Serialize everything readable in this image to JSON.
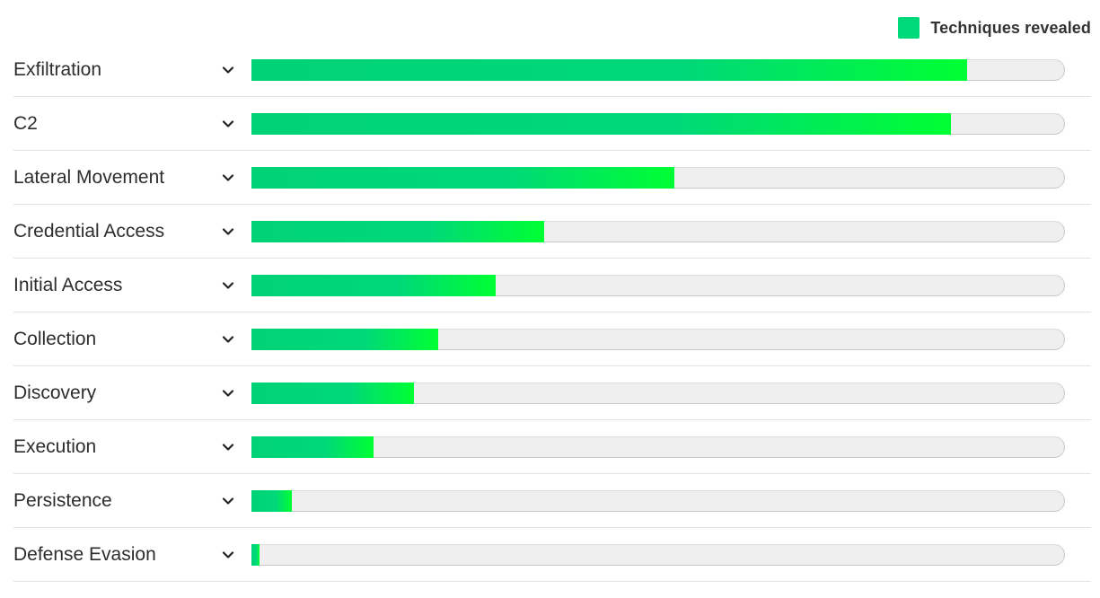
{
  "legend": {
    "label": "Techniques revealed",
    "color": "#00d97a"
  },
  "chart_data": {
    "type": "bar",
    "orientation": "horizontal",
    "categories": [
      "Exfiltration",
      "C2",
      "Lateral Movement",
      "Credential Access",
      "Initial Access",
      "Collection",
      "Discovery",
      "Execution",
      "Persistence",
      "Defense Evasion"
    ],
    "series": [
      {
        "name": "Techniques revealed",
        "values": [
          0.88,
          0.86,
          0.52,
          0.36,
          0.3,
          0.23,
          0.2,
          0.15,
          0.05,
          0.01
        ]
      }
    ],
    "value_unit": "fraction of track",
    "xlim": [
      0,
      1
    ],
    "legend_position": "top-right",
    "grid": false,
    "colors": {
      "bar_start": "#00d278",
      "bar_end": "#00ff33",
      "track": "#efefef"
    },
    "row_icon": "chevron-down-icon"
  }
}
